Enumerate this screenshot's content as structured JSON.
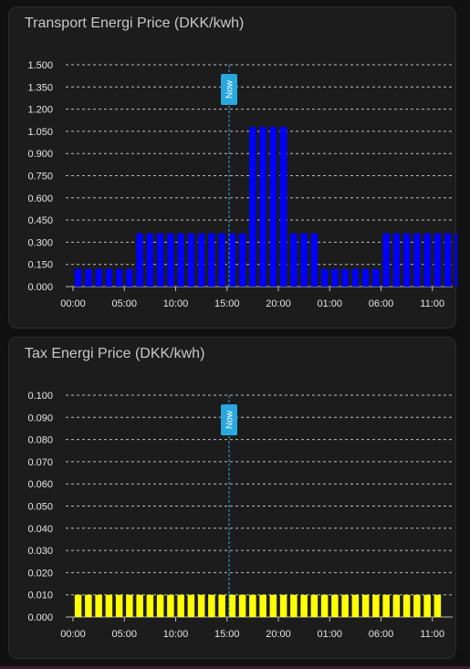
{
  "colors": {
    "card_bg": "#1c1c1c",
    "title": "#c8c8c8",
    "grid": "#bdbdbd",
    "tick_text": "#e6e6e6",
    "now_marker": "#29a8e0"
  },
  "now_label": "Now",
  "chart_data": [
    {
      "type": "bar",
      "title": "Transport Energi Price (DKK/kwh)",
      "bar_color": "#0000ff",
      "ylim": [
        0,
        1.5
      ],
      "yticks": [
        "0.000",
        "0.150",
        "0.300",
        "0.450",
        "0.600",
        "0.750",
        "0.900",
        "1.050",
        "1.200",
        "1.350",
        "1.500"
      ],
      "xticks": [
        "00:00",
        "05:00",
        "10:00",
        "15:00",
        "20:00",
        "01:00",
        "06:00",
        "11:00"
      ],
      "x_start_hour": 0,
      "now_hour": 15.2,
      "values": [
        0.12,
        0.12,
        0.12,
        0.12,
        0.12,
        0.12,
        0.36,
        0.36,
        0.36,
        0.36,
        0.36,
        0.36,
        0.36,
        0.36,
        0.36,
        0.36,
        0.36,
        1.08,
        1.08,
        1.08,
        1.08,
        0.36,
        0.36,
        0.36,
        0.12,
        0.12,
        0.12,
        0.12,
        0.12,
        0.12,
        0.36,
        0.36,
        0.36,
        0.36,
        0.36,
        0.36,
        0.36,
        0.36
      ],
      "grid": true
    },
    {
      "type": "bar",
      "title": "Tax Energi Price (DKK/kwh)",
      "bar_color": "#ffff00",
      "ylim": [
        0,
        0.1
      ],
      "yticks": [
        "0.000",
        "0.010",
        "0.020",
        "0.030",
        "0.040",
        "0.050",
        "0.060",
        "0.070",
        "0.080",
        "0.090",
        "0.100"
      ],
      "xticks": [
        "00:00",
        "05:00",
        "10:00",
        "15:00",
        "20:00",
        "01:00",
        "06:00",
        "11:00"
      ],
      "x_start_hour": 0,
      "now_hour": 15.2,
      "values": [
        0.01,
        0.01,
        0.01,
        0.01,
        0.01,
        0.01,
        0.01,
        0.01,
        0.01,
        0.01,
        0.01,
        0.01,
        0.01,
        0.01,
        0.01,
        0.01,
        0.01,
        0.01,
        0.01,
        0.01,
        0.01,
        0.01,
        0.01,
        0.01,
        0.01,
        0.01,
        0.01,
        0.01,
        0.01,
        0.01,
        0.01,
        0.01,
        0.01,
        0.01,
        0.01,
        0.01
      ],
      "grid": true
    }
  ]
}
